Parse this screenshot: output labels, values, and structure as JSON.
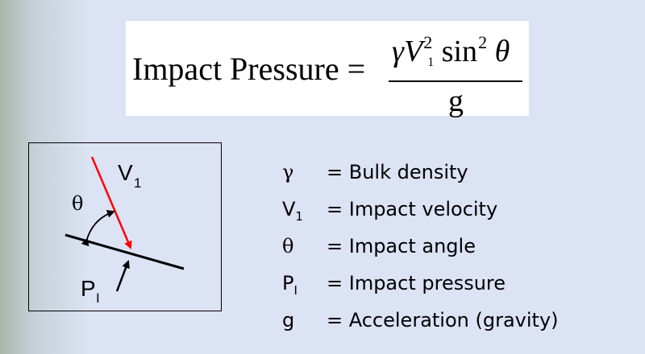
{
  "formula": {
    "lhs": "Impact Pressure",
    "equals": "=",
    "numerator": {
      "gamma": "γ",
      "velocity": "V",
      "velocity_subscript": "1",
      "velocity_power": "2",
      "sin": "sin",
      "sin_power": "2",
      "theta": "θ"
    },
    "denominator": "g"
  },
  "diagram": {
    "velocity_label": "V",
    "velocity_subscript": "1",
    "angle_label": "θ",
    "pressure_label": "P",
    "pressure_subscript": "I",
    "colors": {
      "velocity_arrow": "#ff0000",
      "lines": "#000000"
    }
  },
  "legend": [
    {
      "symbol": "γ",
      "subscript": "",
      "definition": "= Bulk density"
    },
    {
      "symbol": "V",
      "subscript": "1",
      "definition": "= Impact velocity"
    },
    {
      "symbol": "θ",
      "subscript": "",
      "definition": "= Impact angle"
    },
    {
      "symbol": "P",
      "subscript": "I",
      "definition": "=  Impact pressure"
    },
    {
      "symbol": "g",
      "subscript": "",
      "definition": "= Acceleration (gravity)"
    }
  ]
}
